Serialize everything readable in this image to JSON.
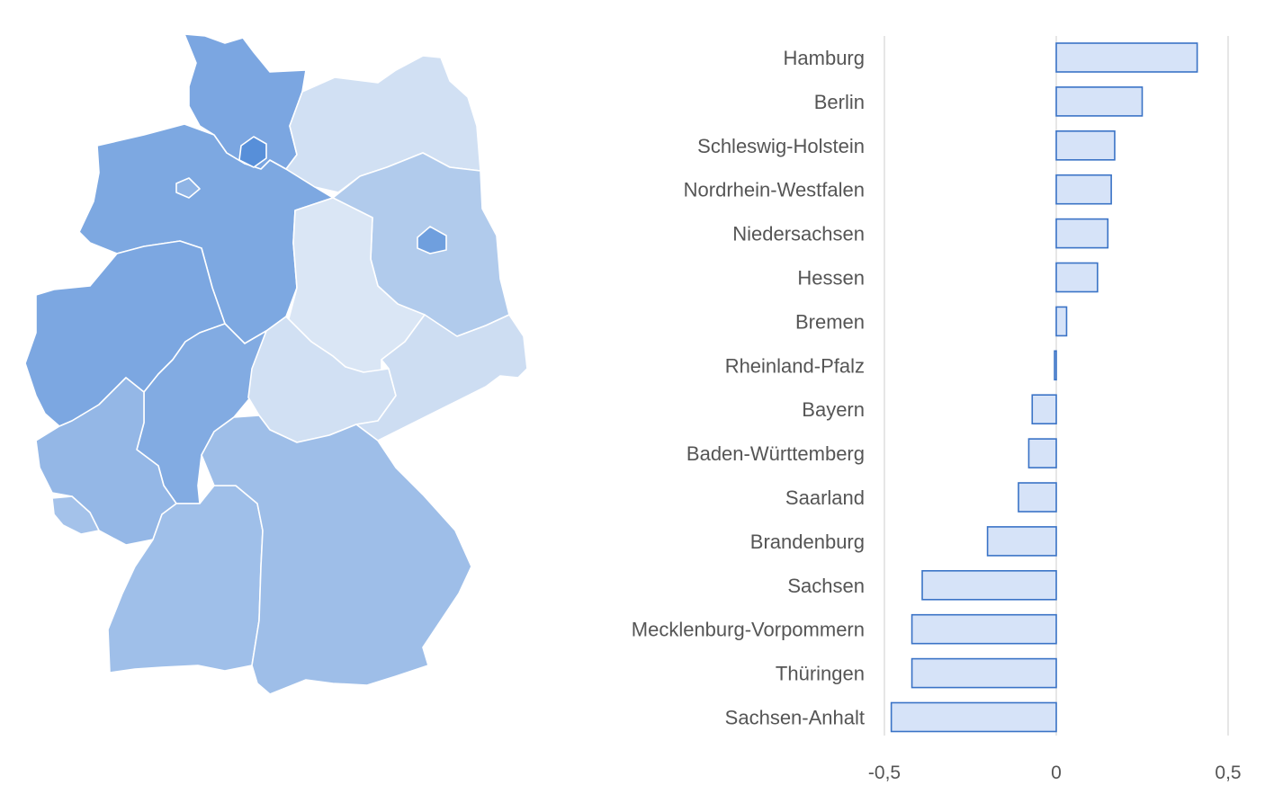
{
  "chart_data": [
    {
      "type": "map",
      "regions": [
        {
          "name": "Schleswig-Holstein",
          "value": 0.17
        },
        {
          "name": "Hamburg",
          "value": 0.41
        },
        {
          "name": "Mecklenburg-Vorpommern",
          "value": -0.42
        },
        {
          "name": "Niedersachsen",
          "value": 0.15
        },
        {
          "name": "Bremen",
          "value": 0.03
        },
        {
          "name": "Berlin",
          "value": 0.25
        },
        {
          "name": "Brandenburg",
          "value": -0.2
        },
        {
          "name": "Sachsen-Anhalt",
          "value": -0.48
        },
        {
          "name": "Nordrhein-Westfalen",
          "value": 0.16
        },
        {
          "name": "Hessen",
          "value": 0.12
        },
        {
          "name": "Thüringen",
          "value": -0.42
        },
        {
          "name": "Sachsen",
          "value": -0.39
        },
        {
          "name": "Rheinland-Pfalz",
          "value": -0.005
        },
        {
          "name": "Saarland",
          "value": -0.11
        },
        {
          "name": "Baden-Württemberg",
          "value": -0.08
        },
        {
          "name": "Bayern",
          "value": -0.07
        }
      ]
    },
    {
      "type": "bar",
      "orientation": "horizontal",
      "categories": [
        "Hamburg",
        "Berlin",
        "Schleswig-Holstein",
        "Nordrhein-Westfalen",
        "Niedersachsen",
        "Hessen",
        "Bremen",
        "Rheinland-Pfalz",
        "Bayern",
        "Baden-Württemberg",
        "Saarland",
        "Brandenburg",
        "Sachsen",
        "Mecklenburg-Vorpommern",
        "Thüringen",
        "Sachsen-Anhalt"
      ],
      "values": [
        0.41,
        0.25,
        0.17,
        0.16,
        0.15,
        0.12,
        0.03,
        -0.005,
        -0.07,
        -0.08,
        -0.11,
        -0.2,
        -0.39,
        -0.42,
        -0.42,
        -0.48
      ],
      "xlim": [
        -0.5,
        0.5
      ],
      "xticks": [
        -0.5,
        0,
        0.5
      ],
      "xtick_labels": [
        "-0,5",
        "0",
        "0,5"
      ],
      "grid": true
    }
  ],
  "colors": {
    "bar_fill": "#d6e3f8",
    "bar_stroke": "#3a73c6",
    "grid": "#dddddd",
    "label": "#555555",
    "map_dark": "#4f8dd9",
    "map_mid": "#89b4e4",
    "map_light": "#dde8f6"
  }
}
